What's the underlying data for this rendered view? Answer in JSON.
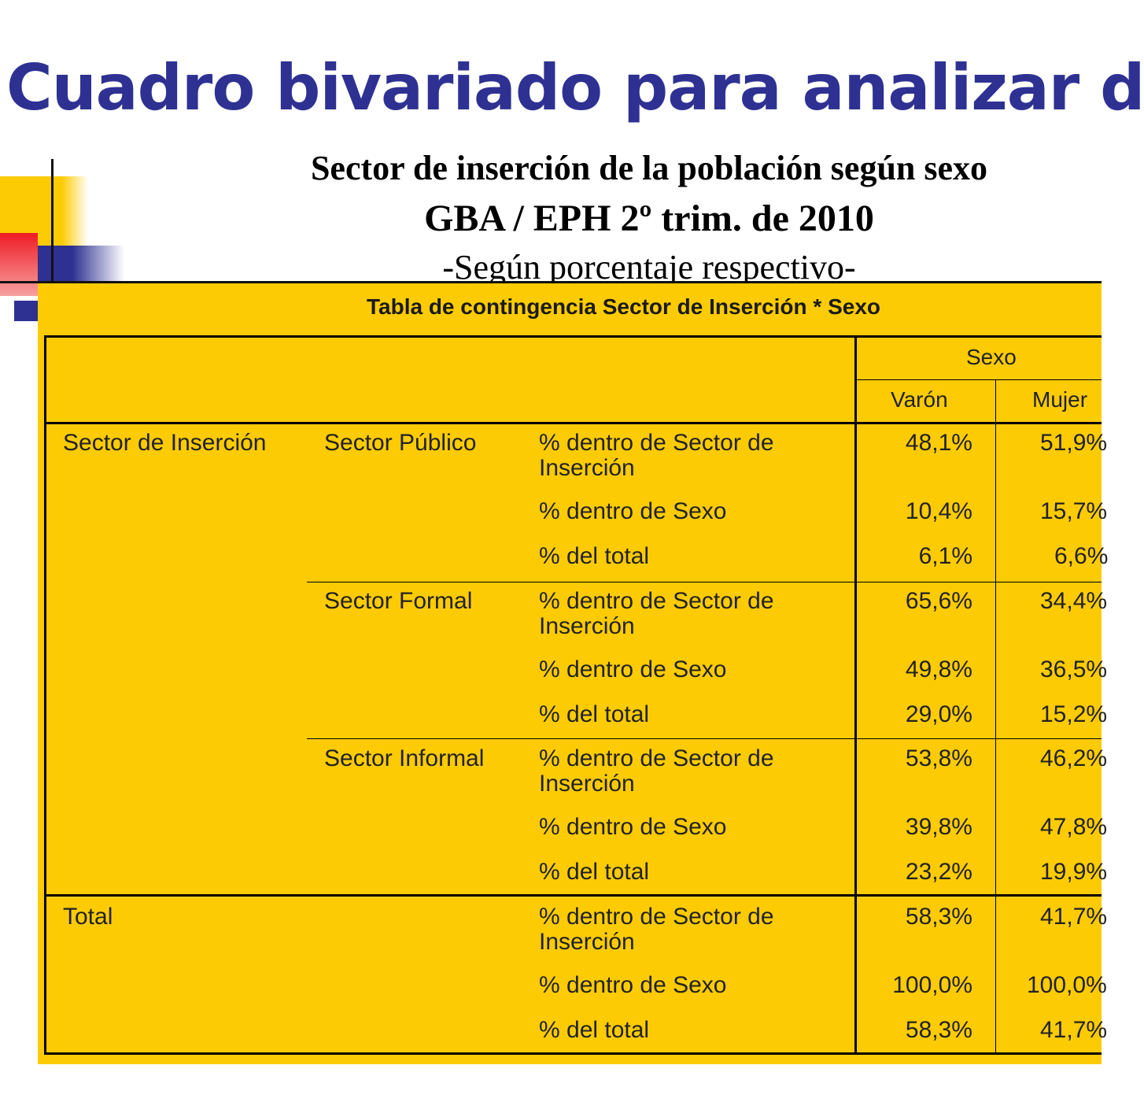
{
  "title": "Cuadro bivariado para analizar d",
  "subtitle": {
    "line1": "Sector de inserción de la población según sexo",
    "line2": "GBA / EPH 2º trim. de 2010",
    "line3": "-Según porcentaje respectivo-"
  },
  "colors": {
    "title": "#2e3192",
    "panel": "#fdcb04",
    "deco_yellow": "#fdcb04",
    "deco_red": "#ee1c25",
    "deco_blue": "#2e3192"
  },
  "table": {
    "caption": "Tabla de contingencia Sector de Inserción * Sexo",
    "header": {
      "group": "Sexo",
      "col1": "Varón",
      "col2": "Mujer"
    },
    "row_group_label": "Sector de Inserción",
    "measures": {
      "m1": "% dentro de Sector de Inserción",
      "m2": "% dentro de Sexo",
      "m3": "% del total"
    },
    "sectors": [
      {
        "name": "Sector Público",
        "values": [
          [
            "48,1%",
            "51,9%"
          ],
          [
            "10,4%",
            "15,7%"
          ],
          [
            "6,1%",
            "6,6%"
          ]
        ]
      },
      {
        "name": "Sector Formal",
        "values": [
          [
            "65,6%",
            "34,4%"
          ],
          [
            "49,8%",
            "36,5%"
          ],
          [
            "29,0%",
            "15,2%"
          ]
        ]
      },
      {
        "name": "Sector Informal",
        "values": [
          [
            "53,8%",
            "46,2%"
          ],
          [
            "39,8%",
            "47,8%"
          ],
          [
            "23,2%",
            "19,9%"
          ]
        ]
      }
    ],
    "total": {
      "name": "Total",
      "values": [
        [
          "58,3%",
          "41,7%"
        ],
        [
          "100,0%",
          "100,0%"
        ],
        [
          "58,3%",
          "41,7%"
        ]
      ]
    }
  }
}
